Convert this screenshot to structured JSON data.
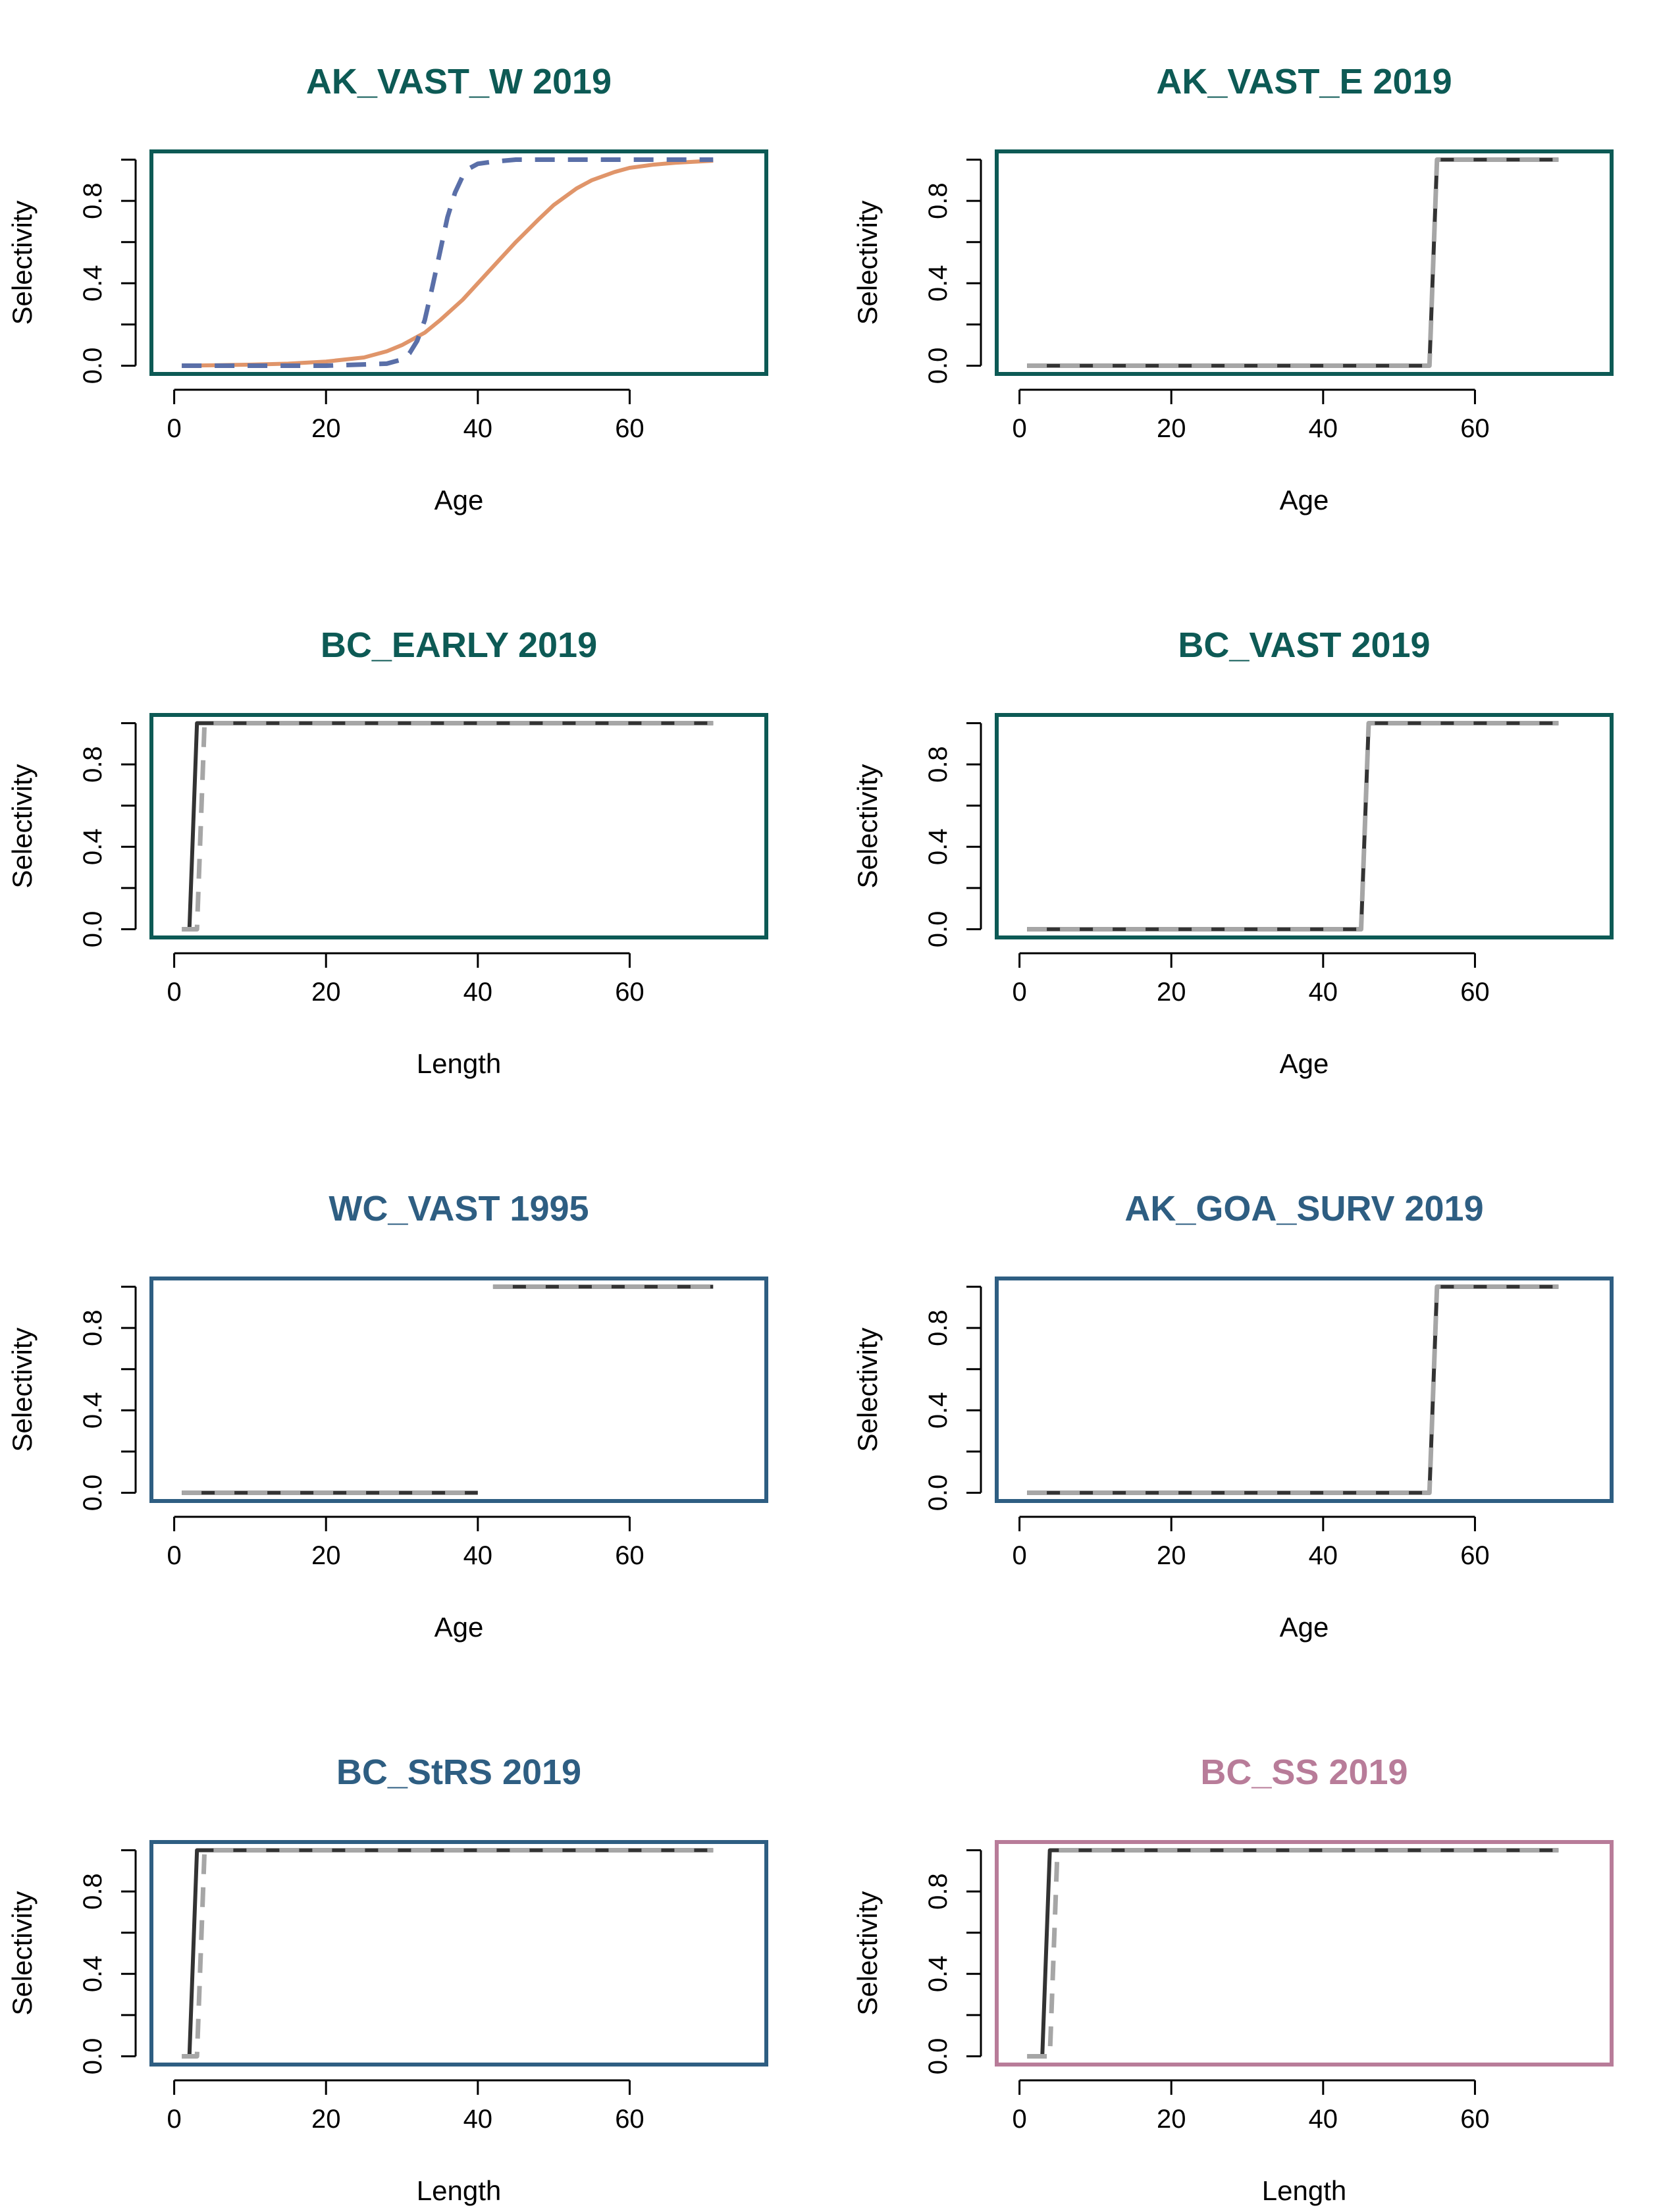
{
  "chart_data": [
    {
      "type": "line",
      "title": "AK_VAST_W 2019",
      "title_color": "#0d5a55",
      "frame_color": "#0d5a55",
      "xlabel": "Age",
      "ylabel": "Selectivity",
      "xlim": [
        -3,
        78
      ],
      "ylim": [
        -0.04,
        1.04
      ],
      "xticks": [
        "0",
        "20",
        "40",
        "60"
      ],
      "yticks": [
        "0.0",
        "0.4",
        "0.8"
      ],
      "series": [
        {
          "style": "solid",
          "color": "#e0956a",
          "x": [
            1,
            5,
            10,
            15,
            20,
            25,
            28,
            30,
            33,
            35,
            38,
            40,
            43,
            45,
            48,
            50,
            53,
            55,
            58,
            60,
            63,
            66,
            70,
            71
          ],
          "y": [
            0.0,
            0.002,
            0.005,
            0.01,
            0.02,
            0.04,
            0.07,
            0.1,
            0.16,
            0.22,
            0.32,
            0.4,
            0.52,
            0.6,
            0.71,
            0.78,
            0.86,
            0.9,
            0.94,
            0.96,
            0.975,
            0.985,
            0.993,
            0.995
          ]
        },
        {
          "style": "dashed",
          "color": "#5a6fa8",
          "x": [
            1,
            10,
            20,
            28,
            30,
            31,
            32,
            33,
            34,
            35,
            36,
            37,
            38,
            39,
            40,
            42,
            45,
            50,
            60,
            71
          ],
          "y": [
            0,
            0,
            0,
            0.01,
            0.03,
            0.06,
            0.12,
            0.22,
            0.38,
            0.55,
            0.72,
            0.84,
            0.92,
            0.96,
            0.98,
            0.99,
            1.0,
            1.0,
            1.0,
            1.0
          ]
        }
      ]
    },
    {
      "type": "line",
      "title": "AK_VAST_E 2019",
      "title_color": "#0d5a55",
      "frame_color": "#0d5a55",
      "xlabel": "Age",
      "ylabel": "Selectivity",
      "xlim": [
        -3,
        78
      ],
      "ylim": [
        -0.04,
        1.04
      ],
      "xticks": [
        "0",
        "20",
        "40",
        "60"
      ],
      "yticks": [
        "0.0",
        "0.4",
        "0.8"
      ],
      "series": [
        {
          "style": "solid",
          "color": "#333333",
          "x": [
            1,
            54,
            55,
            71
          ],
          "y": [
            0,
            0,
            1,
            1
          ]
        },
        {
          "style": "dashed",
          "color": "#a6a6a6",
          "x": [
            1,
            54,
            55,
            71
          ],
          "y": [
            0,
            0,
            1,
            1
          ]
        }
      ]
    },
    {
      "type": "line",
      "title": "BC_EARLY 2019",
      "title_color": "#0d5a55",
      "frame_color": "#0d5a55",
      "xlabel": "Length",
      "ylabel": "Selectivity",
      "xlim": [
        -3,
        78
      ],
      "ylim": [
        -0.04,
        1.04
      ],
      "xticks": [
        "0",
        "20",
        "40",
        "60"
      ],
      "yticks": [
        "0.0",
        "0.4",
        "0.8"
      ],
      "series": [
        {
          "style": "solid",
          "color": "#333333",
          "x": [
            2,
            3,
            71
          ],
          "y": [
            0,
            1,
            1
          ]
        },
        {
          "style": "dashed",
          "color": "#a6a6a6",
          "x": [
            1,
            3,
            4,
            71
          ],
          "y": [
            0,
            0,
            1,
            1
          ]
        }
      ]
    },
    {
      "type": "line",
      "title": "BC_VAST 2019",
      "title_color": "#0d5a55",
      "frame_color": "#0d5a55",
      "xlabel": "Age",
      "ylabel": "Selectivity",
      "xlim": [
        -3,
        78
      ],
      "ylim": [
        -0.04,
        1.04
      ],
      "xticks": [
        "0",
        "20",
        "40",
        "60"
      ],
      "yticks": [
        "0.0",
        "0.4",
        "0.8"
      ],
      "series": [
        {
          "style": "solid",
          "color": "#333333",
          "x": [
            1,
            45,
            46,
            71
          ],
          "y": [
            0,
            0,
            1,
            1
          ]
        },
        {
          "style": "dashed",
          "color": "#a6a6a6",
          "x": [
            1,
            45,
            46,
            71
          ],
          "y": [
            0,
            0,
            1,
            1
          ]
        }
      ]
    },
    {
      "type": "line",
      "title": "WC_VAST 1995",
      "title_color": "#2e5e82",
      "frame_color": "#2e5e82",
      "xlabel": "Age",
      "ylabel": "Selectivity",
      "xlim": [
        -3,
        78
      ],
      "ylim": [
        -0.04,
        1.04
      ],
      "xticks": [
        "0",
        "20",
        "40",
        "60"
      ],
      "yticks": [
        "0.0",
        "0.4",
        "0.8"
      ],
      "series": [
        {
          "style": "solid",
          "color": "#333333",
          "x": [
            1,
            40
          ],
          "y": [
            0,
            0
          ]
        },
        {
          "style": "dashed",
          "color": "#a6a6a6",
          "x": [
            1,
            40
          ],
          "y": [
            0,
            0
          ]
        },
        {
          "style": "solid",
          "color": "#333333",
          "x": [
            42,
            71
          ],
          "y": [
            1,
            1
          ]
        },
        {
          "style": "dashed",
          "color": "#a6a6a6",
          "x": [
            42,
            71
          ],
          "y": [
            1,
            1
          ]
        }
      ]
    },
    {
      "type": "line",
      "title": "AK_GOA_SURV 2019",
      "title_color": "#2e5e82",
      "frame_color": "#2e5e82",
      "xlabel": "Age",
      "ylabel": "Selectivity",
      "xlim": [
        -3,
        78
      ],
      "ylim": [
        -0.04,
        1.04
      ],
      "xticks": [
        "0",
        "20",
        "40",
        "60"
      ],
      "yticks": [
        "0.0",
        "0.4",
        "0.8"
      ],
      "series": [
        {
          "style": "solid",
          "color": "#333333",
          "x": [
            1,
            54,
            55,
            71
          ],
          "y": [
            0,
            0,
            1,
            1
          ]
        },
        {
          "style": "dashed",
          "color": "#a6a6a6",
          "x": [
            1,
            54,
            55,
            71
          ],
          "y": [
            0,
            0,
            1,
            1
          ]
        }
      ]
    },
    {
      "type": "line",
      "title": "BC_StRS 2019",
      "title_color": "#2e5e82",
      "frame_color": "#2e5e82",
      "xlabel": "Length",
      "ylabel": "Selectivity",
      "xlim": [
        -3,
        78
      ],
      "ylim": [
        -0.04,
        1.04
      ],
      "xticks": [
        "0",
        "20",
        "40",
        "60"
      ],
      "yticks": [
        "0.0",
        "0.4",
        "0.8"
      ],
      "series": [
        {
          "style": "solid",
          "color": "#333333",
          "x": [
            2,
            3,
            71
          ],
          "y": [
            0,
            1,
            1
          ]
        },
        {
          "style": "dashed",
          "color": "#a6a6a6",
          "x": [
            1,
            3,
            4,
            71
          ],
          "y": [
            0,
            0,
            1,
            1
          ]
        }
      ]
    },
    {
      "type": "line",
      "title": "BC_SS 2019",
      "title_color": "#b87c99",
      "frame_color": "#b87c99",
      "xlabel": "Length",
      "ylabel": "Selectivity",
      "xlim": [
        -3,
        78
      ],
      "ylim": [
        -0.04,
        1.04
      ],
      "xticks": [
        "0",
        "20",
        "40",
        "60"
      ],
      "yticks": [
        "0.0",
        "0.4",
        "0.8"
      ],
      "series": [
        {
          "style": "solid",
          "color": "#333333",
          "x": [
            3,
            4,
            71
          ],
          "y": [
            0,
            1,
            1
          ]
        },
        {
          "style": "dashed",
          "color": "#a6a6a6",
          "x": [
            1,
            4,
            5,
            71
          ],
          "y": [
            0,
            0,
            1,
            1
          ]
        }
      ]
    }
  ]
}
